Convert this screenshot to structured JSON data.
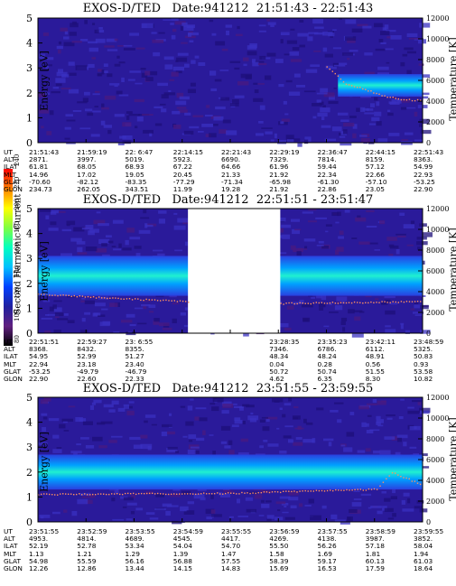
{
  "panels": [
    {
      "title": "EXOS-D/TED   Date:941212  21:51:43 - 22:51:43",
      "ylabel": "Energy [eV]",
      "y2label": "Temperature [K]",
      "rows": {
        "UT": [
          "21:51:43",
          "21:59:19",
          "22: 6:47",
          "22:14:15",
          "22:21:43",
          "22:29:19",
          "22:36:47",
          "22:44:15",
          "22:51:43"
        ],
        "ALT": [
          "2871.",
          "3997.",
          "5019.",
          "5923.",
          "6690.",
          "7329.",
          "7814.",
          "8159.",
          "8363."
        ],
        "ILAT": [
          "61.81",
          "68.05",
          "68.93",
          "67.22",
          "64.66",
          "61.96",
          "59.44",
          "57.12",
          "54.99"
        ],
        "MLT": [
          "14.96",
          "17.02",
          "19.05",
          "20.45",
          "21.33",
          "21.92",
          "22.34",
          "22.66",
          "22.93"
        ],
        "GLAT": [
          "-70.60",
          "-82.12",
          "-83.35",
          "-77.29",
          "-71.34",
          "-65.98",
          "-61.30",
          "-57.10",
          "-53.25"
        ],
        "GLON": [
          "234.73",
          "262.05",
          "343.51",
          "11.99",
          "19.28",
          "21.92",
          "22.86",
          "23.05",
          "22.90"
        ]
      }
    },
    {
      "title": "EXOS-D/TED   Date:941212  22:51:51 - 23:51:47",
      "ylabel": "Energy [eV]",
      "y2label": "Temperature [K]",
      "rows": {
        "UT": [
          "22:51:51",
          "22:59:27",
          "23: 6:55",
          "",
          "",
          "23:28:35",
          "23:35:23",
          "23:42:11",
          "23:48:59"
        ],
        "ALT": [
          "8368.",
          "8432.",
          "8355.",
          "",
          "",
          "7346.",
          "6786.",
          "6112.",
          "5325."
        ],
        "ILAT": [
          "54.95",
          "52.99",
          "51.27",
          "",
          "",
          "48.34",
          "48.24",
          "48.91",
          "50.83"
        ],
        "MLT": [
          "22.94",
          "23.18",
          "23.40",
          "",
          "",
          "0.04",
          "0.28",
          "0.56",
          "0.93"
        ],
        "GLAT": [
          "-53.25",
          "-49.79",
          "-46.79",
          "",
          "",
          "50.72",
          "50.74",
          "51.55",
          "53.58"
        ],
        "GLON": [
          "22.90",
          "22.60",
          "22.33",
          "",
          "",
          "4.62",
          "6.35",
          "8.30",
          "10.82"
        ]
      }
    },
    {
      "title": "EXOS-D/TED   Date:941212  23:51:55 - 23:59:55",
      "ylabel": "Energy [eV]",
      "y2label": "Temperature [K]",
      "rows": {
        "UT": [
          "23:51:55",
          "23:52:59",
          "23:53:55",
          "23:54:59",
          "23:55:55",
          "23:56:59",
          "23:57:55",
          "23:58:59",
          "23:59:55"
        ],
        "ALT": [
          "4953.",
          "4814.",
          "4689.",
          "4545.",
          "4417.",
          "4269.",
          "4138.",
          "3987.",
          "3852."
        ],
        "ILAT": [
          "52.19",
          "52.78",
          "53.34",
          "54.04",
          "54.70",
          "55.50",
          "56.26",
          "57.18",
          "58.04"
        ],
        "MLT": [
          "1.13",
          "1.21",
          "1.29",
          "1.39",
          "1.47",
          "1.58",
          "1.69",
          "1.81",
          "1.94"
        ],
        "GLAT": [
          "54.98",
          "55.59",
          "56.16",
          "56.88",
          "57.55",
          "58.39",
          "59.17",
          "60.13",
          "61.03"
        ],
        "GLON": [
          "12.26",
          "12.86",
          "13.44",
          "14.15",
          "14.83",
          "15.69",
          "16.53",
          "17.59",
          "18.64"
        ]
      }
    }
  ],
  "row_labels": [
    "UT",
    "ALT",
    "ILAT",
    "MLT",
    "GLAT",
    "GLON"
  ],
  "colorbar": {
    "label": "Second Harmonic Current",
    "ticks": [
      "240",
      "220",
      "200",
      "180",
      "160",
      "140",
      "120",
      "100",
      "80"
    ],
    "colors": [
      "#ff0000",
      "#ff8000",
      "#ffff00",
      "#80ff40",
      "#00ffc0",
      "#00c0ff",
      "#0040ff",
      "#2020a0",
      "#602080",
      "#000000"
    ]
  },
  "chart_data": [
    {
      "type": "heatmap",
      "title": "EXOS-D/TED   Date:941212  21:51:43 - 22:51:43",
      "ylabel": "Energy [eV]",
      "y2label": "Temperature [K]",
      "ylim": [
        0,
        5
      ],
      "y2lim": [
        0,
        12000
      ],
      "yticks": [
        0,
        1,
        2,
        3,
        4,
        5
      ],
      "y2ticks": [
        0,
        2000,
        4000,
        6000,
        8000,
        10000,
        12000
      ],
      "x_ticks": [
        "21:51:43",
        "21:59:19",
        "22: 6:47",
        "22:14:15",
        "22:21:43",
        "22:29:19",
        "22:36:47",
        "22:44:15",
        "22:51:43"
      ],
      "band": {
        "x_start_frac": 0.78,
        "energy_center": 2.3,
        "energy_width": 0.45
      },
      "temperature_trace": {
        "x_frac": [
          0.75,
          0.8,
          0.85,
          0.9,
          0.95,
          1.0
        ],
        "K": [
          7400,
          5700,
          5200,
          4500,
          4200,
          4100
        ]
      }
    },
    {
      "type": "heatmap",
      "title": "EXOS-D/TED   Date:941212  22:51:51 - 23:51:47",
      "ylabel": "Energy [eV]",
      "y2label": "Temperature [K]",
      "ylim": [
        0,
        5
      ],
      "y2lim": [
        0,
        12000
      ],
      "yticks": [
        0,
        1,
        2,
        3,
        4,
        5
      ],
      "y2ticks": [
        0,
        2000,
        4000,
        6000,
        8000,
        10000,
        12000
      ],
      "x_ticks": [
        "22:51:51",
        "22:59:27",
        "23: 6:55",
        "23:28:35",
        "23:35:23",
        "23:42:11",
        "23:48:59"
      ],
      "data_gap": {
        "x_start_frac": 0.39,
        "x_end_frac": 0.63
      },
      "band": {
        "energy_center": 2.3,
        "energy_width": 0.8
      },
      "temperature_trace": {
        "x_frac": [
          0,
          0.2,
          0.39,
          0.63,
          0.8,
          1.0
        ],
        "K": [
          3800,
          3400,
          3100,
          2900,
          3000,
          3100
        ]
      }
    },
    {
      "type": "heatmap",
      "title": "EXOS-D/TED   Date:941212  23:51:55 - 23:59:55",
      "ylabel": "Energy [eV]",
      "y2label": "Temperature [K]",
      "ylim": [
        0,
        5
      ],
      "y2lim": [
        0,
        12000
      ],
      "yticks": [
        0,
        1,
        2,
        3,
        4,
        5
      ],
      "y2ticks": [
        0,
        2000,
        4000,
        6000,
        8000,
        10000,
        12000
      ],
      "x_ticks": [
        "23:51:55",
        "23:52:59",
        "23:53:55",
        "23:54:59",
        "23:55:55",
        "23:56:59",
        "23:57:55",
        "23:58:59",
        "23:59:55"
      ],
      "band": {
        "energy_center": 2.0,
        "energy_width": 0.7
      },
      "temperature_trace": {
        "x_frac": [
          0,
          0.5,
          0.88,
          0.92,
          1.0
        ],
        "K": [
          2700,
          2800,
          3200,
          4800,
          3600
        ]
      }
    }
  ]
}
